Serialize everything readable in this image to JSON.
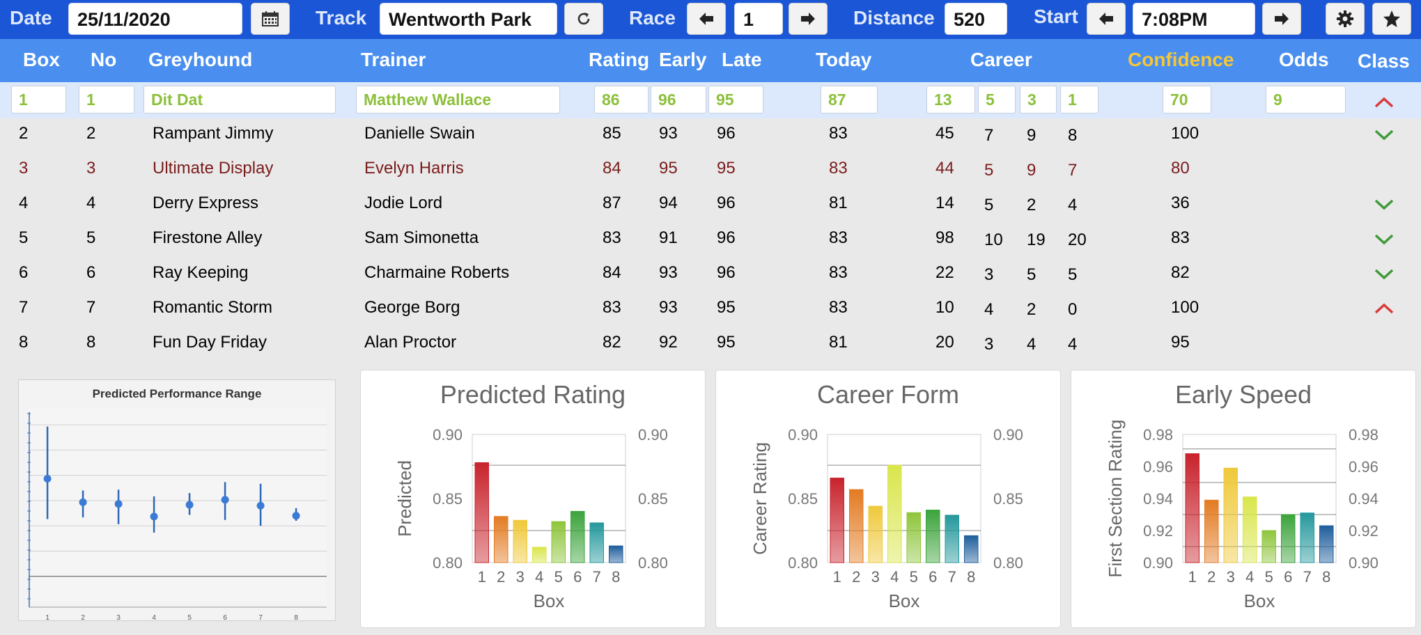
{
  "toolbar": {
    "date_label": "Date",
    "date_value": "25/11/2020",
    "track_label": "Track",
    "track_value": "Wentworth Park",
    "race_label": "Race",
    "race_value": "1",
    "distance_label": "Distance",
    "distance_value": "520",
    "start_label": "Start",
    "start_value": "7:08PM"
  },
  "columns": {
    "box": "Box",
    "no": "No",
    "greyhound": "Greyhound",
    "trainer": "Trainer",
    "rating": "Rating",
    "early": "Early",
    "late": "Late",
    "today": "Today",
    "career": "Career",
    "confidence": "Confidence",
    "odds": "Odds",
    "class": "Class"
  },
  "selected": {
    "box": "1",
    "no": "1",
    "greyhound": "Dit Dat",
    "trainer": "Matthew Wallace",
    "rating": "86",
    "early": "96",
    "late": "95",
    "today": "87",
    "career_starts": "13",
    "career_wins": "5",
    "career_seconds": "3",
    "career_thirds": "1",
    "confidence": "70",
    "odds": "9"
  },
  "rows": [
    {
      "box": "2",
      "no": "2",
      "greyhound": "Rampant Jimmy",
      "trainer": "Danielle Swain",
      "rating": "85",
      "early": "93",
      "late": "96",
      "today": "83",
      "c1": "45",
      "c2": "7",
      "c3": "9",
      "c4": "8",
      "confidence": "100",
      "class_icon": "chevron-down-icon",
      "highlight": false
    },
    {
      "box": "3",
      "no": "3",
      "greyhound": "Ultimate Display",
      "trainer": "Evelyn Harris",
      "rating": "84",
      "early": "95",
      "late": "95",
      "today": "83",
      "c1": "44",
      "c2": "5",
      "c3": "9",
      "c4": "7",
      "confidence": "80",
      "class_icon": "",
      "highlight": true
    },
    {
      "box": "4",
      "no": "4",
      "greyhound": "Derry Express",
      "trainer": "Jodie Lord",
      "rating": "87",
      "early": "94",
      "late": "96",
      "today": "81",
      "c1": "14",
      "c2": "5",
      "c3": "2",
      "c4": "4",
      "confidence": "36",
      "class_icon": "chevron-down-icon",
      "highlight": false
    },
    {
      "box": "5",
      "no": "5",
      "greyhound": "Firestone Alley",
      "trainer": "Sam Simonetta",
      "rating": "83",
      "early": "91",
      "late": "96",
      "today": "83",
      "c1": "98",
      "c2": "10",
      "c3": "19",
      "c4": "20",
      "confidence": "83",
      "class_icon": "chevron-down-icon",
      "highlight": false
    },
    {
      "box": "6",
      "no": "6",
      "greyhound": "Ray Keeping",
      "trainer": "Charmaine Roberts",
      "rating": "84",
      "early": "93",
      "late": "96",
      "today": "83",
      "c1": "22",
      "c2": "3",
      "c3": "5",
      "c4": "5",
      "confidence": "82",
      "class_icon": "chevron-down-icon",
      "highlight": false
    },
    {
      "box": "7",
      "no": "7",
      "greyhound": "Romantic Storm",
      "trainer": "George Borg",
      "rating": "83",
      "early": "93",
      "late": "95",
      "today": "83",
      "c1": "10",
      "c2": "4",
      "c3": "2",
      "c4": "0",
      "confidence": "100",
      "class_icon": "chevron-up-icon",
      "highlight": false
    },
    {
      "box": "8",
      "no": "8",
      "greyhound": "Fun Day Friday",
      "trainer": "Alan Proctor",
      "rating": "82",
      "early": "92",
      "late": "95",
      "today": "81",
      "c1": "20",
      "c2": "3",
      "c3": "4",
      "c4": "4",
      "confidence": "95",
      "class_icon": "",
      "highlight": false
    }
  ],
  "colors": {
    "toolbar_bg": "#1a56d6",
    "header_bg": "#4a8ff0",
    "confidence_header": "#f5c637",
    "selected_text": "#8cc03a",
    "highlight_text": "#7a1c1c",
    "chevron_up": "#d83b3b",
    "chevron_down": "#3f9a3a"
  },
  "chart_data": [
    {
      "type": "scatter",
      "title": "Predicted Performance Range",
      "categories": [
        "1",
        "2",
        "3",
        "4",
        "5",
        "6",
        "7",
        "8"
      ],
      "mid": [
        0.876,
        0.848,
        0.846,
        0.831,
        0.845,
        0.851,
        0.844,
        0.832
      ],
      "low": [
        0.828,
        0.83,
        0.822,
        0.812,
        0.833,
        0.827,
        0.82,
        0.826
      ],
      "high": [
        0.938,
        0.862,
        0.863,
        0.855,
        0.859,
        0.872,
        0.87,
        0.841
      ],
      "ylim": [
        0.73,
        0.96
      ],
      "grid": true
    },
    {
      "type": "bar",
      "title": "Predicted Rating",
      "xlabel": "Box",
      "ylabel": "Predicted",
      "categories": [
        "1",
        "2",
        "3",
        "4",
        "5",
        "6",
        "7",
        "8"
      ],
      "values": [
        0.878,
        0.836,
        0.833,
        0.812,
        0.832,
        0.84,
        0.831,
        0.813
      ],
      "ylim": [
        0.8,
        0.9
      ],
      "yticks": [
        "0.80",
        "0.85",
        "0.90"
      ],
      "gridlines": [
        0.825,
        0.876
      ]
    },
    {
      "type": "bar",
      "title": "Career Form",
      "xlabel": "Box",
      "ylabel": "Career Rating",
      "categories": [
        "1",
        "2",
        "3",
        "4",
        "5",
        "6",
        "7",
        "8"
      ],
      "values": [
        0.866,
        0.857,
        0.844,
        0.876,
        0.839,
        0.841,
        0.837,
        0.821
      ],
      "ylim": [
        0.8,
        0.9
      ],
      "yticks": [
        "0.80",
        "0.85",
        "0.90"
      ],
      "gridlines": [
        0.825,
        0.876
      ]
    },
    {
      "type": "bar",
      "title": "Early Speed",
      "xlabel": "Box",
      "ylabel": "First Section Rating",
      "categories": [
        "1",
        "2",
        "3",
        "4",
        "5",
        "6",
        "7",
        "8"
      ],
      "values": [
        0.968,
        0.939,
        0.959,
        0.941,
        0.92,
        0.93,
        0.931,
        0.923
      ],
      "ylim": [
        0.9,
        0.98
      ],
      "yticks": [
        "0.90",
        "0.92",
        "0.94",
        "0.96",
        "0.98"
      ],
      "gridlines": [
        0.91,
        0.93,
        0.95,
        0.971
      ]
    }
  ]
}
